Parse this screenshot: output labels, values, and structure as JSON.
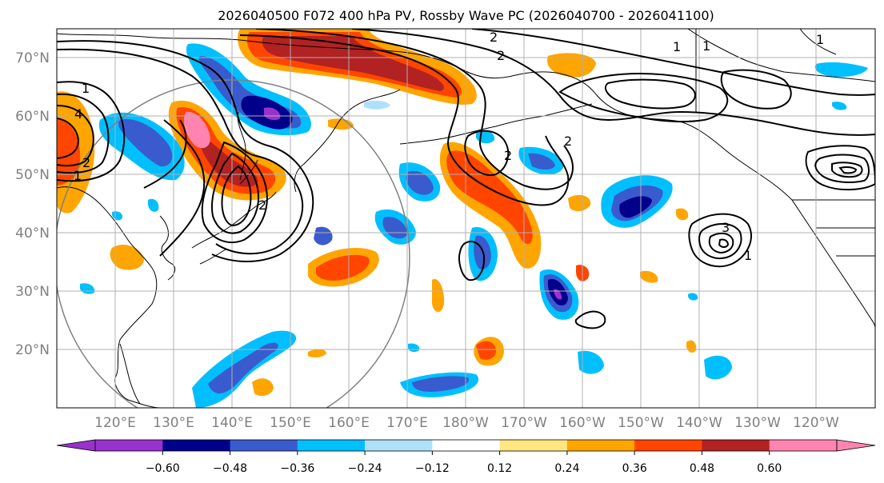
{
  "title": "2026040500 F072 400 hPa PV, Rossby Wave PC (2026040700 - 2026041100)",
  "latitude_labels": [
    "70°N",
    "60°N",
    "50°N",
    "40°N",
    "30°N",
    "20°N"
  ],
  "longitude_labels": [
    "120°E",
    "130°E",
    "140°E",
    "150°E",
    "160°E",
    "170°E",
    "180°W",
    "170°W",
    "160°W",
    "150°W",
    "140°W",
    "130°W",
    "120°W"
  ],
  "colorbar": {
    "colors": [
      "#9932cc",
      "#00008b",
      "#3a5bcd",
      "#00bfff",
      "#afe0fa",
      "#ffffff",
      "#ffe680",
      "#ffa500",
      "#ff4500",
      "#b22222",
      "#ff85b0"
    ],
    "labels": [
      "−0.60",
      "−0.48",
      "−0.36",
      "−0.24",
      "−0.12",
      "0.12",
      "0.24",
      "0.36",
      "0.48",
      "0.60"
    ]
  },
  "contour_labels": {
    "a": "1",
    "b": "4",
    "c": "2",
    "d": "1",
    "e": "2",
    "f": "2",
    "g": "1",
    "h": "1",
    "i": "2",
    "j": "3",
    "k": "1",
    "l": "2",
    "m": "1",
    "n": "2"
  }
}
